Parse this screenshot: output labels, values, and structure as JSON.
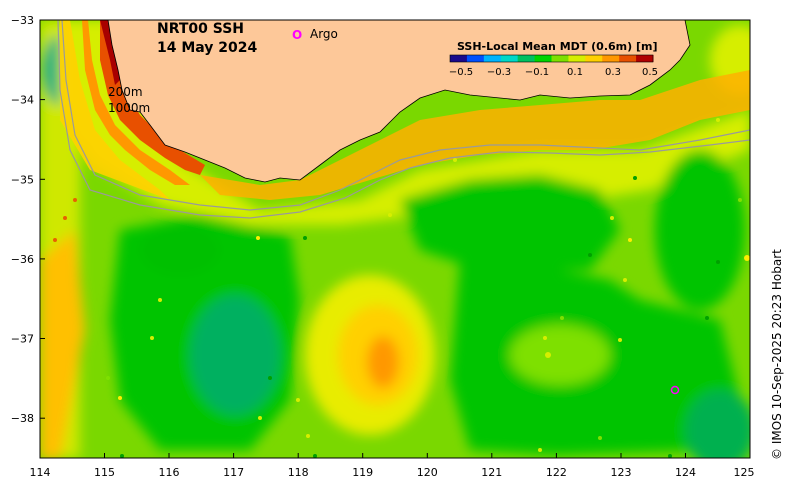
{
  "title": {
    "line1": "NRT00 SSH",
    "line2": "14 May 2024"
  },
  "legend": {
    "argo_marker": "O",
    "argo_label": "Argo",
    "argo_color": "#ff00ff"
  },
  "contours": {
    "label_200": "200m",
    "label_1000": "1000m"
  },
  "colorbar": {
    "title": "SSH-Local Mean MDT (0.6m) [m]",
    "ticks": [
      "−0.5",
      "−0.3",
      "−0.1",
      "0.1",
      "0.3",
      "0.5"
    ],
    "colors": [
      "#1a0a8c",
      "#0050ff",
      "#00b4ff",
      "#00d8c8",
      "#00c060",
      "#00d400",
      "#7ee000",
      "#d6ee00",
      "#ffd000",
      "#ff9800",
      "#e85000",
      "#b00000"
    ]
  },
  "axes": {
    "x_ticks": [
      "114",
      "115",
      "116",
      "117",
      "118",
      "119",
      "120",
      "121",
      "122",
      "123",
      "124",
      "125"
    ],
    "y_ticks": [
      "−33",
      "−34",
      "−35",
      "−36",
      "−37",
      "−38"
    ]
  },
  "credit": "© IMOS 10-Sep-2025 20:23 Hobart",
  "colors": {
    "land": "#fdc899",
    "coast": "#000000",
    "shelf_contour": "#9a9a9a"
  }
}
